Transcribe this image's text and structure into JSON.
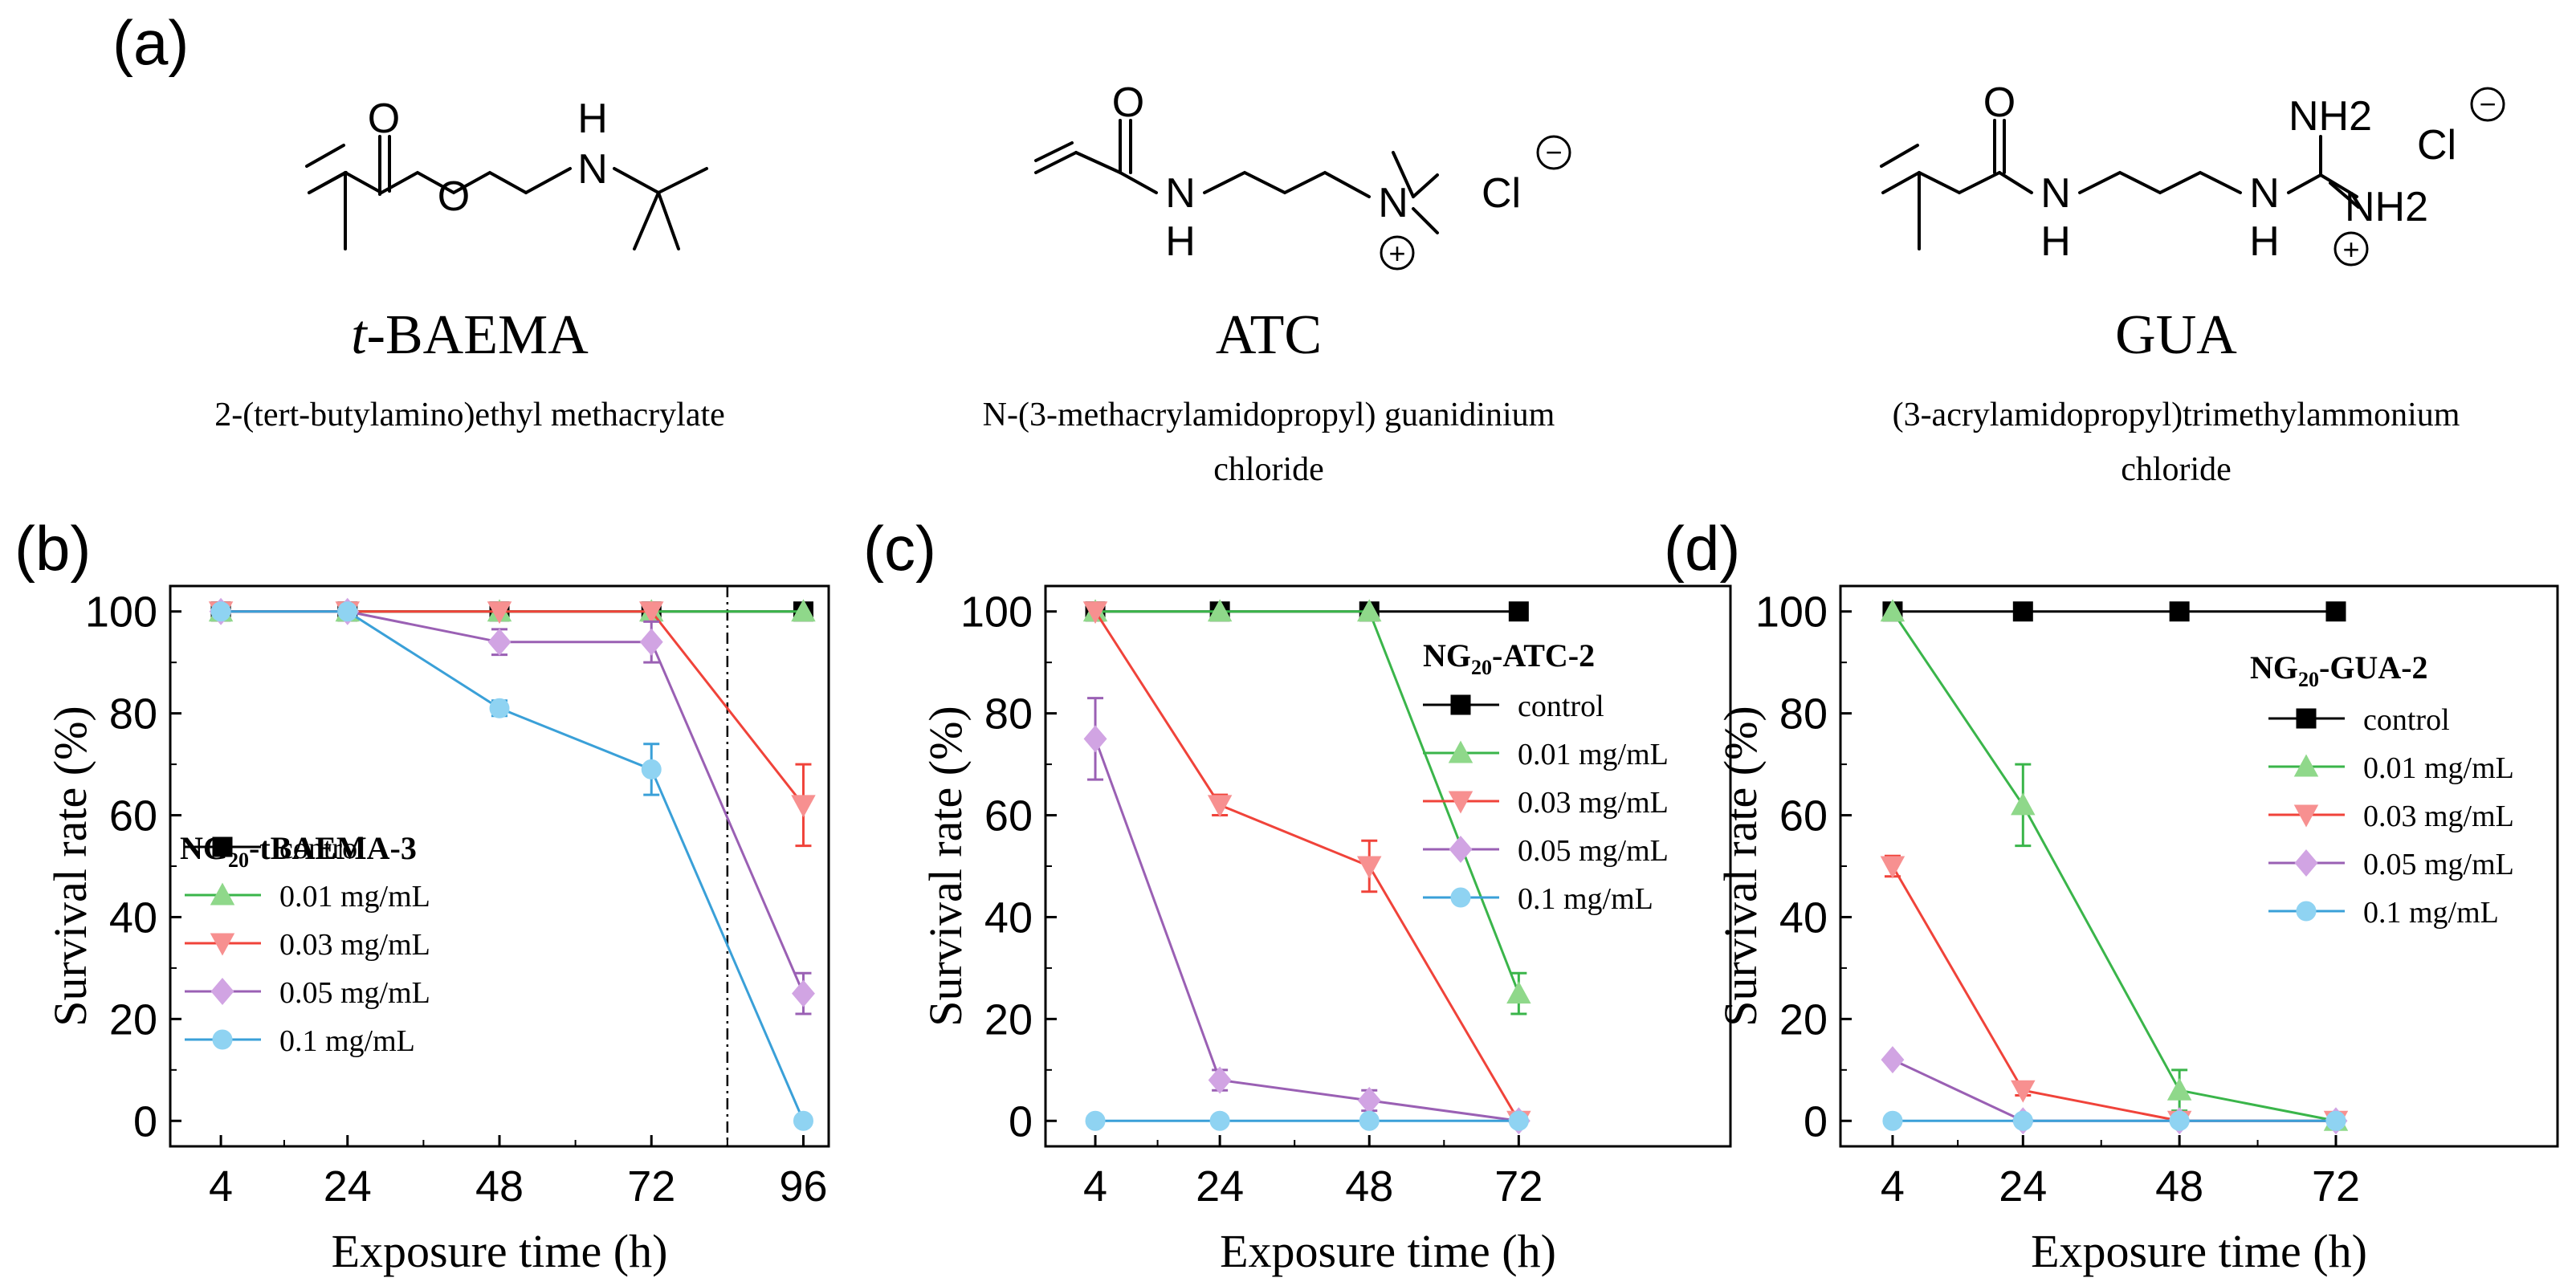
{
  "panel_a": {
    "label": "(a)",
    "structures": [
      {
        "name": "t-BAEMA",
        "name_prefix": "t",
        "name_rest": "-BAEMA",
        "caption_lines": [
          "2-(tert-butylamino)ethyl methacrylate"
        ],
        "atoms": {
          "o1": "O",
          "o2": "O",
          "h": "H",
          "n": "N"
        }
      },
      {
        "name": "ATC",
        "caption_lines": [
          "N-(3-methacrylamidopropyl) guanidinium",
          "chloride"
        ],
        "atoms": {
          "o": "O",
          "n1": "N",
          "h": "H",
          "n2": "N",
          "cl": "Cl",
          "minus": "−",
          "plus": "+"
        }
      },
      {
        "name": "GUA",
        "caption_lines": [
          "(3-acrylamidopropyl)trimethylammonium",
          "chloride"
        ],
        "atoms": {
          "o": "O",
          "n1": "N",
          "h1": "H",
          "n2": "N",
          "h2": "H",
          "nh2a": "NH2",
          "nh2b": "NH2",
          "cl": "Cl",
          "minus": "−",
          "plus": "+"
        }
      }
    ]
  },
  "colors": {
    "control": "#000000",
    "c001": "#3ab54a",
    "c003": "#f0433a",
    "c005": "#9a60b4",
    "c01": "#3aa0d8",
    "c001_fill": "#8fd88a",
    "c003_fill": "#f79090",
    "c005_fill": "#d1a4e3",
    "c01_fill": "#8fd3f2"
  },
  "chart_data": [
    {
      "panel_label": "(b)",
      "type": "line",
      "title": "NG20-tBAEMA-3",
      "title_main": "NG",
      "title_sub": "20",
      "title_rest": "-tBAEMA-3",
      "xlabel": "Exposure time (h)",
      "ylabel": "Survival rate (%)",
      "x_ticks": [
        "4",
        "24",
        "48",
        "72",
        "96"
      ],
      "y_ticks": [
        "0",
        "20",
        "40",
        "60",
        "80",
        "100"
      ],
      "ylim": [
        -5,
        105
      ],
      "vline_label": "",
      "legend": [
        "control",
        "0.01 mg/mL",
        "0.03 mg/mL",
        "0.05 mg/mL",
        "0.1 mg/mL"
      ],
      "series": [
        {
          "name": "control",
          "marker": "square",
          "x": [
            4,
            24,
            48,
            72,
            96
          ],
          "values": [
            100,
            100,
            100,
            100,
            100
          ],
          "err": [
            0,
            0,
            0,
            0,
            0
          ]
        },
        {
          "name": "0.01 mg/mL",
          "marker": "triangle-up",
          "x": [
            4,
            24,
            48,
            72,
            96
          ],
          "values": [
            100,
            100,
            100,
            100,
            100
          ],
          "err": [
            0,
            0,
            0,
            0,
            0
          ]
        },
        {
          "name": "0.03 mg/mL",
          "marker": "triangle-down",
          "x": [
            4,
            24,
            48,
            72,
            96
          ],
          "values": [
            100,
            100,
            100,
            100,
            62
          ],
          "err": [
            0,
            0,
            0,
            0,
            8
          ]
        },
        {
          "name": "0.05 mg/mL",
          "marker": "diamond",
          "x": [
            4,
            24,
            48,
            72,
            96
          ],
          "values": [
            100,
            100,
            94,
            94,
            25
          ],
          "err": [
            0,
            0,
            2.5,
            4,
            4
          ]
        },
        {
          "name": "0.1 mg/mL",
          "marker": "circle",
          "x": [
            4,
            24,
            48,
            72,
            96
          ],
          "values": [
            100,
            100,
            81,
            69,
            0
          ],
          "err": [
            0,
            0,
            1.5,
            5,
            0
          ]
        }
      ]
    },
    {
      "panel_label": "(c)",
      "type": "line",
      "title": "NG20-ATC-2",
      "title_main": "NG",
      "title_sub": "20",
      "title_rest": "-ATC-2",
      "xlabel": "Exposure time (h)",
      "ylabel": "Survival rate (%)",
      "x_ticks": [
        "4",
        "24",
        "48",
        "72"
      ],
      "y_ticks": [
        "0",
        "20",
        "40",
        "60",
        "80",
        "100"
      ],
      "ylim": [
        -5,
        105
      ],
      "legend": [
        "control",
        "0.01 mg/mL",
        "0.03 mg/mL",
        "0.05 mg/mL",
        "0.1 mg/mL"
      ],
      "series": [
        {
          "name": "control",
          "marker": "square",
          "x": [
            4,
            24,
            48,
            72
          ],
          "values": [
            100,
            100,
            100,
            100
          ],
          "err": [
            0,
            0,
            0,
            0
          ]
        },
        {
          "name": "0.01 mg/mL",
          "marker": "triangle-up",
          "x": [
            4,
            24,
            48,
            72
          ],
          "values": [
            100,
            100,
            100,
            25
          ],
          "err": [
            0,
            0,
            0,
            4
          ]
        },
        {
          "name": "0.03 mg/mL",
          "marker": "triangle-down",
          "x": [
            4,
            24,
            48,
            72
          ],
          "values": [
            100,
            62,
            50,
            0
          ],
          "err": [
            0,
            2,
            5,
            0
          ]
        },
        {
          "name": "0.05 mg/mL",
          "marker": "diamond",
          "x": [
            4,
            24,
            48,
            72
          ],
          "values": [
            75,
            8,
            4,
            0
          ],
          "err": [
            8,
            2,
            2,
            0
          ]
        },
        {
          "name": "0.1 mg/mL",
          "marker": "circle",
          "x": [
            4,
            24,
            48,
            72
          ],
          "values": [
            0,
            0,
            0,
            0
          ],
          "err": [
            0,
            0,
            0,
            0
          ]
        }
      ]
    },
    {
      "panel_label": "(d)",
      "type": "line",
      "title": "NG20-GUA-2",
      "title_main": "NG",
      "title_sub": "20",
      "title_rest": "-GUA-2",
      "xlabel": "Exposure time (h)",
      "ylabel": "Survival rate (%)",
      "x_ticks": [
        "4",
        "24",
        "48",
        "72"
      ],
      "y_ticks": [
        "0",
        "20",
        "40",
        "60",
        "80",
        "100"
      ],
      "ylim": [
        -5,
        105
      ],
      "legend": [
        "control",
        "0.01 mg/mL",
        "0.03 mg/mL",
        "0.05 mg/mL",
        "0.1 mg/mL"
      ],
      "series": [
        {
          "name": "control",
          "marker": "square",
          "x": [
            4,
            24,
            48,
            72
          ],
          "values": [
            100,
            100,
            100,
            100
          ],
          "err": [
            0,
            0,
            0,
            0
          ]
        },
        {
          "name": "0.01 mg/mL",
          "marker": "triangle-up",
          "x": [
            4,
            24,
            48,
            72
          ],
          "values": [
            100,
            62,
            6,
            0
          ],
          "err": [
            0,
            8,
            4,
            0
          ]
        },
        {
          "name": "0.03 mg/mL",
          "marker": "triangle-down",
          "x": [
            4,
            24,
            48,
            72
          ],
          "values": [
            50,
            6,
            0,
            0
          ],
          "err": [
            2,
            1,
            0,
            0
          ]
        },
        {
          "name": "0.05 mg/mL",
          "marker": "diamond",
          "x": [
            4,
            24,
            48,
            72
          ],
          "values": [
            12,
            0,
            0,
            0
          ],
          "err": [
            0,
            0,
            0,
            0
          ]
        },
        {
          "name": "0.1 mg/mL",
          "marker": "circle",
          "x": [
            4,
            24,
            48,
            72
          ],
          "values": [
            0,
            0,
            0,
            0
          ],
          "err": [
            0,
            0,
            0,
            0
          ]
        }
      ]
    }
  ]
}
